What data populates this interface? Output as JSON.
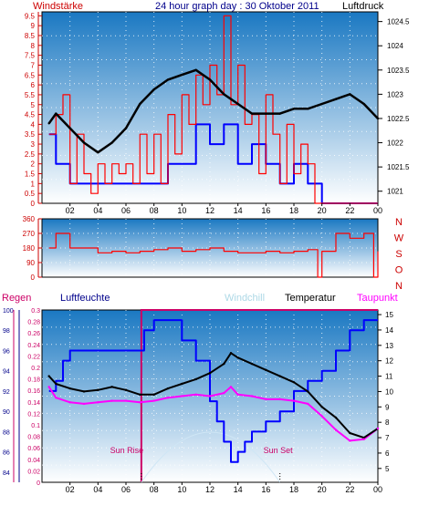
{
  "header": {
    "title": "24 hour graph day : 30 Oktober 2011",
    "left_label": "Windstärke",
    "right_label": "Luftdruck"
  },
  "colors": {
    "wind": "#ff0000",
    "gust_bar": "#0000ff",
    "pressure": "#000000",
    "humidity": "#0000ff",
    "temperature": "#000000",
    "dewpoint": "#ff00ff",
    "windchill": "#add8e6",
    "sun_line": "#cc0066",
    "sky_top": "#1e7ac4",
    "sky_bottom": "#ffffff"
  },
  "chart_data": [
    {
      "type": "line",
      "panel": "wind_pressure",
      "xlabel": "",
      "x_ticks": [
        "02",
        "04",
        "06",
        "08",
        "10",
        "12",
        "14",
        "16",
        "18",
        "20",
        "22",
        "00"
      ],
      "ylabel_left": "Windstärke",
      "yticks_left": [
        "0",
        "0.5",
        "1",
        "1.5",
        "2",
        "2.5",
        "3",
        "3.5",
        "4",
        "4.5",
        "5",
        "5.5",
        "6",
        "6.5",
        "7",
        "7.5",
        "8",
        "8.5",
        "9",
        "9.5"
      ],
      "ylim_left": [
        0,
        9.7
      ],
      "ylabel_right": "Luftdruck",
      "yticks_right": [
        "1021",
        "1021.5",
        "1022",
        "1022.5",
        "1023",
        "1023.5",
        "1024",
        "1024.5"
      ],
      "ylim_right": [
        1020.75,
        1024.7
      ],
      "series": [
        {
          "name": "Luftdruck",
          "axis": "right",
          "x": [
            0.5,
            1,
            2,
            3,
            4,
            5,
            6,
            7,
            8,
            9,
            10,
            11,
            12,
            13,
            14,
            15,
            16,
            17,
            18,
            19,
            20,
            21,
            22,
            23,
            24
          ],
          "values": [
            1022.4,
            1022.6,
            1022.3,
            1022,
            1021.8,
            1022,
            1022.3,
            1022.8,
            1023.1,
            1023.3,
            1023.4,
            1023.5,
            1023.3,
            1023,
            1022.8,
            1022.6,
            1022.6,
            1022.6,
            1022.7,
            1022.7,
            1022.8,
            1022.9,
            1023,
            1022.8,
            1022.5
          ]
        },
        {
          "name": "Wind",
          "axis": "left",
          "x": [
            0.5,
            1,
            1.5,
            2,
            2.5,
            3,
            3.5,
            4,
            4.5,
            5,
            5.5,
            6,
            6.5,
            7,
            7.5,
            8,
            8.5,
            9,
            9.5,
            10,
            10.5,
            11,
            11.5,
            12,
            12.5,
            13,
            13.5,
            14,
            14.5,
            15,
            15.5,
            16,
            16.5,
            17,
            17.5,
            18,
            18.5,
            19,
            19.5,
            20,
            21,
            22,
            23,
            24
          ],
          "values": [
            3.5,
            4.5,
            5.5,
            1,
            3.5,
            1.5,
            0.5,
            2,
            1,
            2,
            1.5,
            2,
            1,
            3.5,
            1.5,
            3.5,
            1,
            4.5,
            2.5,
            5.5,
            4,
            6.5,
            5,
            7,
            5.5,
            9.5,
            5,
            7,
            4,
            4.5,
            1.5,
            5.5,
            3.5,
            1,
            4,
            1.5,
            3,
            2,
            0,
            0,
            0,
            0,
            0,
            0
          ]
        },
        {
          "name": "Böen",
          "axis": "left",
          "x": [
            0.5,
            1,
            2,
            3,
            4,
            5,
            6,
            7,
            8,
            9,
            10,
            11,
            12,
            13,
            14,
            15,
            16,
            17,
            18,
            19,
            20,
            21,
            22,
            23,
            24
          ],
          "values": [
            3.5,
            2,
            1,
            1,
            1,
            1,
            1,
            1,
            1,
            2,
            2,
            4,
            3,
            4,
            2,
            3,
            2,
            1,
            2,
            1,
            0,
            0,
            0,
            0,
            0
          ]
        }
      ]
    },
    {
      "type": "line",
      "panel": "wind_direction",
      "xlabel": "",
      "x_ticks": [],
      "yticks": [
        "0",
        "90",
        "180",
        "270",
        "360"
      ],
      "ylim": [
        0,
        360
      ],
      "compass": [
        "N",
        "W",
        "S",
        "O",
        "N"
      ],
      "series": [
        {
          "name": "Windrichtung",
          "x": [
            0.5,
            1,
            2,
            3,
            4,
            5,
            6,
            7,
            8,
            9,
            10,
            11,
            12,
            13,
            14,
            15,
            16,
            17,
            18,
            19,
            19.7,
            20,
            21,
            22,
            23,
            23.7,
            24
          ],
          "values": [
            180,
            270,
            180,
            180,
            150,
            160,
            150,
            160,
            170,
            180,
            160,
            170,
            180,
            160,
            150,
            150,
            160,
            150,
            160,
            170,
            0,
            160,
            270,
            240,
            270,
            0,
            160
          ]
        }
      ]
    },
    {
      "type": "line",
      "panel": "humidity_temperature",
      "xlabel": "",
      "x_ticks": [
        "02",
        "04",
        "06",
        "08",
        "10",
        "12",
        "14",
        "16",
        "18",
        "20",
        "22",
        "00"
      ],
      "legend": [
        "Regen",
        "Luftfeuchte",
        "Windchill",
        "Temperatur",
        "Taupunkt"
      ],
      "yticks_rain": [
        "0",
        "0.02",
        "0.04",
        "0.06",
        "0.08",
        "0.1",
        "0.12",
        "0.14",
        "0.16",
        "0.18",
        "0.2",
        "0.22",
        "0.24",
        "0.26",
        "0.28",
        "0.3"
      ],
      "ylim_rain": [
        0,
        0.3
      ],
      "yticks_humidity": [
        "84",
        "86",
        "88",
        "90",
        "92",
        "94",
        "96",
        "98",
        "100"
      ],
      "ylim_humidity": [
        83,
        100
      ],
      "yticks_temp": [
        "5",
        "6",
        "7",
        "8",
        "9",
        "10",
        "11",
        "12",
        "13",
        "14",
        "15"
      ],
      "ylim_temp": [
        4.1,
        15.3
      ],
      "sunrise": 7.1,
      "sunset": 17.0,
      "sun_labels": [
        "Sun Rise",
        "Sun Set"
      ],
      "series": [
        {
          "name": "Luftfeuchte",
          "x": [
            0.5,
            1,
            1.5,
            2,
            3,
            4,
            5,
            6,
            7,
            7.3,
            8,
            9,
            10,
            11,
            12,
            12.5,
            13,
            13.5,
            14,
            14.5,
            15,
            16,
            17,
            18,
            19,
            20,
            21,
            22,
            23,
            23.3,
            24
          ],
          "values": [
            92,
            93,
            95,
            96,
            96,
            96,
            96,
            96,
            96,
            98,
            99,
            99,
            97,
            95,
            91,
            89,
            87,
            85,
            86,
            87,
            88,
            89,
            90,
            92,
            93,
            94,
            96,
            98,
            99,
            99,
            99
          ]
        },
        {
          "name": "Temperatur",
          "x": [
            0.5,
            1,
            2,
            3,
            4,
            5,
            6,
            7,
            8,
            9,
            10,
            11,
            12,
            13,
            13.5,
            14,
            15,
            16,
            17,
            18,
            19,
            20,
            21,
            22,
            23,
            24
          ],
          "values": [
            11,
            10.5,
            10.2,
            10,
            10.1,
            10.3,
            10.1,
            9.8,
            9.8,
            10.2,
            10.5,
            10.8,
            11.2,
            11.8,
            12.5,
            12.2,
            11.8,
            11.4,
            11,
            10.6,
            10,
            9,
            8.3,
            7.3,
            7,
            7.6
          ]
        },
        {
          "name": "Taupunkt",
          "x": [
            0.5,
            1,
            2,
            3,
            4,
            5,
            6,
            7,
            8,
            9,
            10,
            11,
            12,
            13,
            13.5,
            14,
            15,
            16,
            17,
            18,
            19,
            20,
            21,
            22,
            23,
            24
          ],
          "values": [
            10.3,
            9.6,
            9.3,
            9.2,
            9.3,
            9.4,
            9.4,
            9.3,
            9.4,
            9.6,
            9.7,
            9.8,
            9.7,
            9.9,
            10.3,
            9.8,
            9.7,
            9.5,
            9.5,
            9.4,
            9.2,
            8.4,
            7.5,
            6.8,
            6.9,
            7.6
          ]
        }
      ]
    }
  ]
}
